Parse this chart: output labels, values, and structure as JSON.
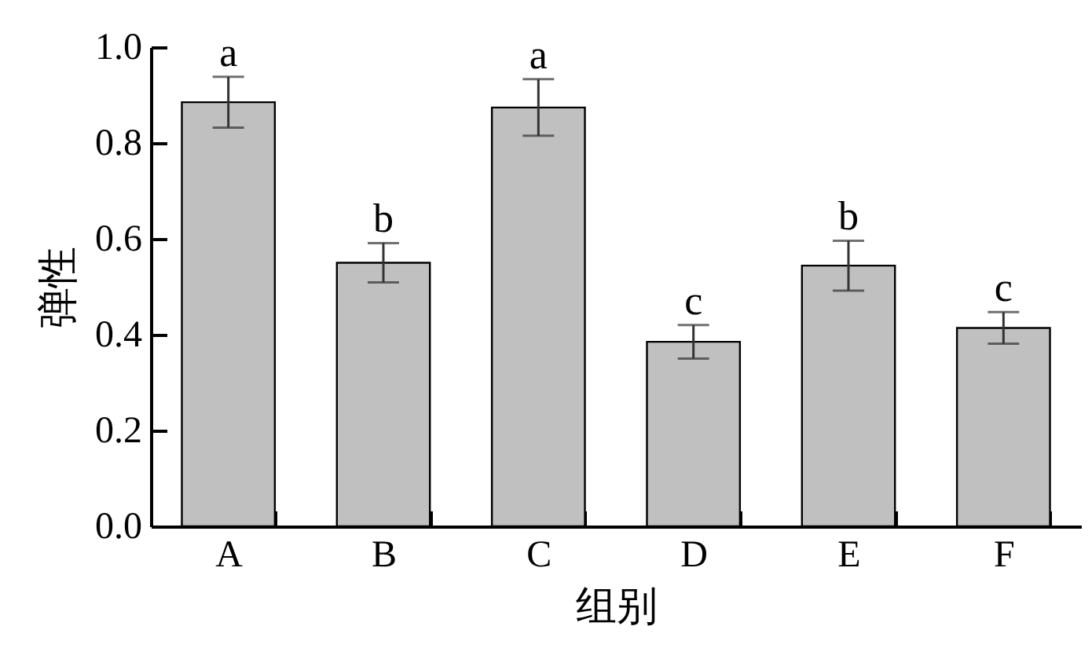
{
  "chart_data": {
    "type": "bar",
    "xlabel": "组别",
    "ylabel": "弹性",
    "categories": [
      "A",
      "B",
      "C",
      "D",
      "E",
      "F"
    ],
    "values": [
      0.885,
      0.55,
      0.874,
      0.385,
      0.544,
      0.414
    ],
    "errors": [
      0.053,
      0.041,
      0.059,
      0.035,
      0.052,
      0.033
    ],
    "color": "#c0c0c0",
    "ylim": [
      0,
      1.0
    ],
    "yticks": [
      {
        "value": 0,
        "label": "0.0"
      },
      {
        "value": 0.2,
        "label": "0.2"
      },
      {
        "value": 0.4,
        "label": "0.4"
      },
      {
        "value": 0.6,
        "label": "0.6"
      },
      {
        "value": 0.8,
        "label": "0.8"
      },
      {
        "value": 1.0,
        "label": "1.0"
      }
    ],
    "annotations": [
      {
        "text": "a",
        "x": "A",
        "y": 0.938
      },
      {
        "text": "b",
        "x": "B",
        "y": 0.591
      },
      {
        "text": "a",
        "x": "C",
        "y": 0.933
      },
      {
        "text": "c",
        "x": "D",
        "y": 0.42
      },
      {
        "text": "b",
        "x": "E",
        "y": 0.596
      },
      {
        "text": "c",
        "x": "F",
        "y": 0.447
      }
    ],
    "grid": false
  }
}
